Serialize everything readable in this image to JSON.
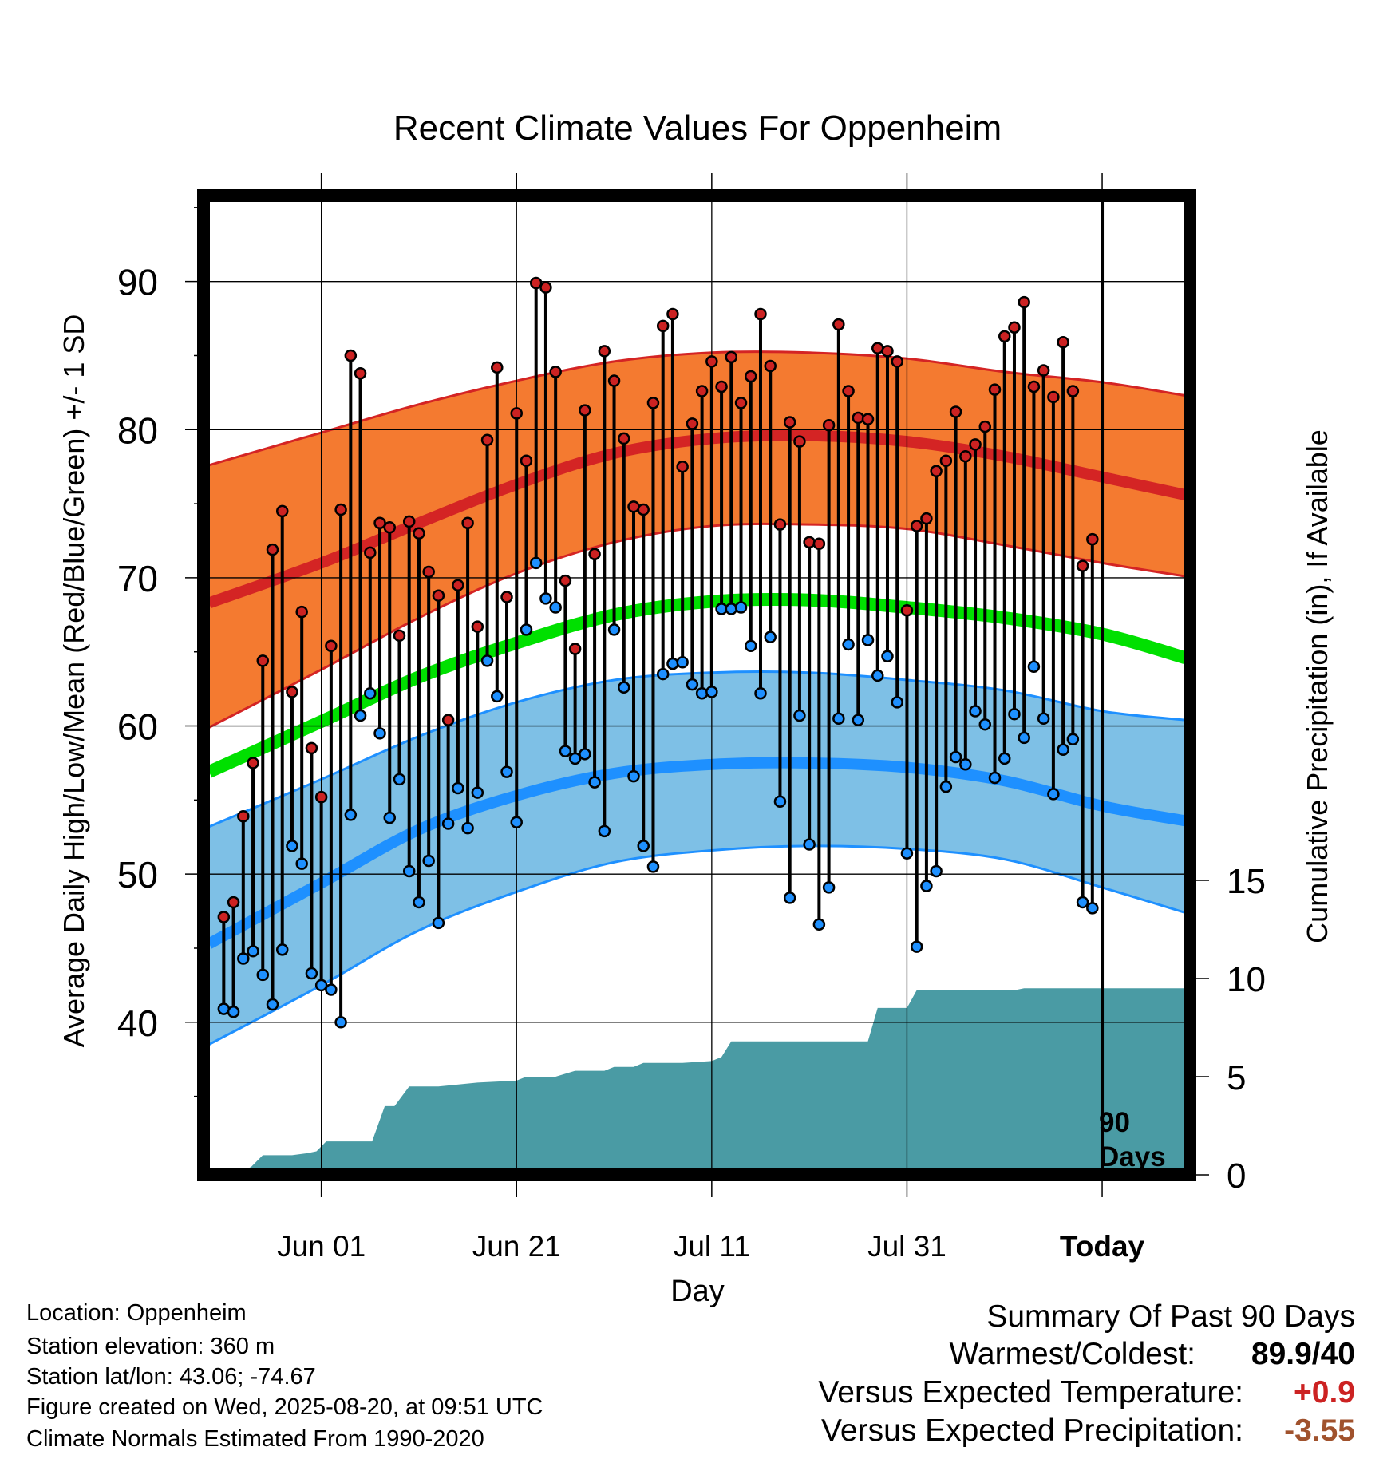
{
  "chart_data": {
    "type": "line",
    "title": "Recent Climate Values For Oppenheim",
    "xlabel": "Day",
    "ylabel_left": "Average Daily High/Low/Mean (Red/Blue/Green) +/- 1 SD",
    "ylabel_right": "Cumulative Precipitation (in), If Available",
    "x_ticks": [
      {
        "day": 10,
        "label": "Jun 01"
      },
      {
        "day": 30,
        "label": "Jun 21"
      },
      {
        "day": 50,
        "label": "Jul 11"
      },
      {
        "day": 70,
        "label": "Jul 31"
      },
      {
        "day": 90,
        "label": "Today"
      }
    ],
    "x_range_days": [
      -1.5,
      98.5
    ],
    "y_left_ticks": [
      40,
      50,
      60,
      70,
      80,
      90
    ],
    "y_left_range": [
      29.7,
      95.8
    ],
    "y_right_ticks": [
      0,
      5,
      10,
      15
    ],
    "today_day": 90,
    "today_annotation": [
      "90",
      "Days"
    ],
    "normals": {
      "high_mean": [
        [
          -1.5,
          68.3
        ],
        [
          10,
          71.0
        ],
        [
          20,
          73.7
        ],
        [
          30,
          76.3
        ],
        [
          40,
          78.4
        ],
        [
          50,
          79.4
        ],
        [
          60,
          79.6
        ],
        [
          70,
          79.2
        ],
        [
          80,
          78.2
        ],
        [
          90,
          76.8
        ],
        [
          98.5,
          75.6
        ]
      ],
      "high_upper": [
        [
          -1.5,
          77.6
        ],
        [
          10,
          79.8
        ],
        [
          20,
          81.7
        ],
        [
          30,
          83.3
        ],
        [
          40,
          84.6
        ],
        [
          50,
          85.2
        ],
        [
          60,
          85.2
        ],
        [
          70,
          84.8
        ],
        [
          80,
          83.9
        ],
        [
          90,
          83.2
        ],
        [
          98.5,
          82.3
        ]
      ],
      "high_lower": [
        [
          -1.5,
          59.9
        ],
        [
          10,
          63.8
        ],
        [
          20,
          67.3
        ],
        [
          30,
          70.3
        ],
        [
          40,
          72.4
        ],
        [
          50,
          73.5
        ],
        [
          60,
          73.6
        ],
        [
          70,
          73.3
        ],
        [
          80,
          72.2
        ],
        [
          90,
          71.0
        ],
        [
          98.5,
          70.1
        ]
      ],
      "mean": [
        [
          -1.5,
          56.9
        ],
        [
          10,
          60.3
        ],
        [
          20,
          63.3
        ],
        [
          30,
          65.6
        ],
        [
          40,
          67.5
        ],
        [
          50,
          68.4
        ],
        [
          60,
          68.5
        ],
        [
          70,
          68.0
        ],
        [
          80,
          67.3
        ],
        [
          90,
          66.2
        ],
        [
          98.5,
          64.6
        ]
      ],
      "low_mean": [
        [
          -1.5,
          45.3
        ],
        [
          10,
          49.4
        ],
        [
          20,
          53.0
        ],
        [
          30,
          55.3
        ],
        [
          40,
          56.8
        ],
        [
          50,
          57.4
        ],
        [
          60,
          57.5
        ],
        [
          70,
          57.2
        ],
        [
          80,
          56.3
        ],
        [
          90,
          54.6
        ],
        [
          98.5,
          53.6
        ]
      ],
      "low_upper": [
        [
          -1.5,
          53.2
        ],
        [
          10,
          56.4
        ],
        [
          20,
          59.3
        ],
        [
          30,
          61.6
        ],
        [
          40,
          63.1
        ],
        [
          50,
          63.6
        ],
        [
          60,
          63.6
        ],
        [
          70,
          63.1
        ],
        [
          80,
          62.4
        ],
        [
          90,
          61.0
        ],
        [
          98.5,
          60.4
        ]
      ],
      "low_lower": [
        [
          -1.5,
          38.5
        ],
        [
          10,
          42.5
        ],
        [
          20,
          46.2
        ],
        [
          30,
          48.8
        ],
        [
          40,
          50.8
        ],
        [
          50,
          51.6
        ],
        [
          60,
          51.9
        ],
        [
          70,
          51.7
        ],
        [
          80,
          51.0
        ],
        [
          90,
          49.1
        ],
        [
          98.5,
          47.4
        ]
      ]
    },
    "daily_high": [
      47.1,
      48.1,
      53.9,
      57.5,
      64.4,
      71.9,
      74.5,
      62.3,
      67.7,
      58.5,
      55.2,
      65.4,
      74.6,
      85.0,
      83.8,
      71.7,
      73.7,
      73.4,
      66.1,
      73.8,
      73.0,
      70.4,
      68.8,
      60.4,
      69.5,
      73.7,
      66.7,
      79.3,
      84.2,
      68.7,
      81.1,
      77.9,
      89.9,
      89.6,
      83.9,
      69.8,
      65.2,
      81.3,
      71.6,
      85.3,
      83.3,
      79.4,
      74.8,
      74.6,
      81.8,
      87.0,
      87.8,
      77.5,
      80.4,
      82.6,
      84.6,
      82.9,
      84.9,
      81.8,
      83.6,
      87.8,
      84.3,
      73.6,
      80.5,
      79.2,
      72.4,
      72.3,
      80.3,
      87.1,
      82.6,
      80.8,
      80.7,
      85.5,
      85.3,
      84.6,
      67.8,
      73.5,
      74.0,
      77.2,
      77.9,
      81.2,
      78.2,
      79.0,
      80.2,
      82.7,
      86.3,
      86.9,
      88.6,
      82.9,
      84.0,
      82.2,
      85.9,
      82.6,
      70.8,
      72.6
    ],
    "daily_low": [
      40.9,
      40.7,
      44.3,
      44.8,
      43.2,
      41.2,
      44.9,
      51.9,
      50.7,
      43.3,
      42.5,
      42.2,
      40.0,
      54.0,
      60.7,
      62.2,
      59.5,
      53.8,
      56.4,
      50.2,
      48.1,
      50.9,
      46.7,
      53.4,
      55.8,
      53.1,
      55.5,
      64.4,
      62.0,
      56.9,
      53.5,
      66.5,
      71.0,
      68.6,
      68.0,
      58.3,
      57.8,
      58.1,
      56.2,
      52.9,
      66.5,
      62.6,
      56.6,
      51.9,
      50.5,
      63.5,
      64.2,
      64.3,
      62.8,
      62.2,
      62.3,
      67.9,
      67.9,
      68.0,
      65.4,
      62.2,
      66.0,
      54.9,
      48.4,
      60.7,
      52.0,
      46.6,
      49.1,
      60.5,
      65.5,
      60.4,
      65.8,
      63.4,
      64.7,
      61.6,
      51.4,
      45.1,
      49.2,
      50.2,
      55.9,
      57.9,
      57.4,
      61.0,
      60.1,
      56.5,
      57.8,
      60.8,
      59.2,
      64.0,
      60.5,
      55.4,
      58.4,
      59.1,
      48.1,
      47.7
    ],
    "precip_cumulative": [
      [
        -1.5,
        0
      ],
      [
        1,
        0
      ],
      [
        2.8,
        0.4
      ],
      [
        4,
        1.0
      ],
      [
        7,
        1.0
      ],
      [
        8.5,
        1.1
      ],
      [
        9.5,
        1.2
      ],
      [
        10.5,
        1.7
      ],
      [
        11,
        1.7
      ],
      [
        15.2,
        1.7
      ],
      [
        16.5,
        3.5
      ],
      [
        17.5,
        3.5
      ],
      [
        19,
        4.5
      ],
      [
        22,
        4.5
      ],
      [
        26,
        4.7
      ],
      [
        30,
        4.8
      ],
      [
        31,
        5.0
      ],
      [
        34,
        5.0
      ],
      [
        36,
        5.3
      ],
      [
        39,
        5.3
      ],
      [
        40,
        5.5
      ],
      [
        42,
        5.5
      ],
      [
        43,
        5.7
      ],
      [
        47,
        5.7
      ],
      [
        50,
        5.8
      ],
      [
        51,
        6.0
      ],
      [
        52,
        6.8
      ],
      [
        60,
        6.8
      ],
      [
        66,
        6.8
      ],
      [
        67,
        8.5
      ],
      [
        70,
        8.5
      ],
      [
        71,
        9.4
      ],
      [
        78,
        9.4
      ],
      [
        81,
        9.4
      ],
      [
        82,
        9.5
      ],
      [
        92,
        9.5
      ],
      [
        98.5,
        9.5
      ]
    ],
    "summary": {
      "title": "Summary Of Past 90 Days",
      "rows": [
        {
          "label": "Warmest/Coldest:",
          "value": "89.9/40",
          "color": "#000000"
        },
        {
          "label": "Versus Expected Temperature:",
          "value": "+0.9",
          "color": "#cc2222"
        },
        {
          "label": "Versus Expected Precipitation:",
          "value": "-3.55",
          "color": "#a0522d"
        }
      ]
    },
    "colors": {
      "high_band": "#f47a30",
      "high_band_edge": "#d42424",
      "high_mean": "#d42424",
      "mean": "#00e000",
      "low_band": "#7ec0e6",
      "low_band_edge": "#1e90ff",
      "low_mean": "#1e90ff",
      "precip": "#4a9ba4",
      "high_marker": "#cc2222",
      "low_marker": "#1e90ff"
    }
  },
  "station": {
    "location": "Location: Oppenheim",
    "elevation": "Station elevation: 360 m",
    "latlon": "Station lat/lon: 43.06; -74.67",
    "created": "Figure created on Wed, 2025-08-20, at 09:51 UTC",
    "normals": "Climate Normals Estimated From 1990-2020"
  }
}
